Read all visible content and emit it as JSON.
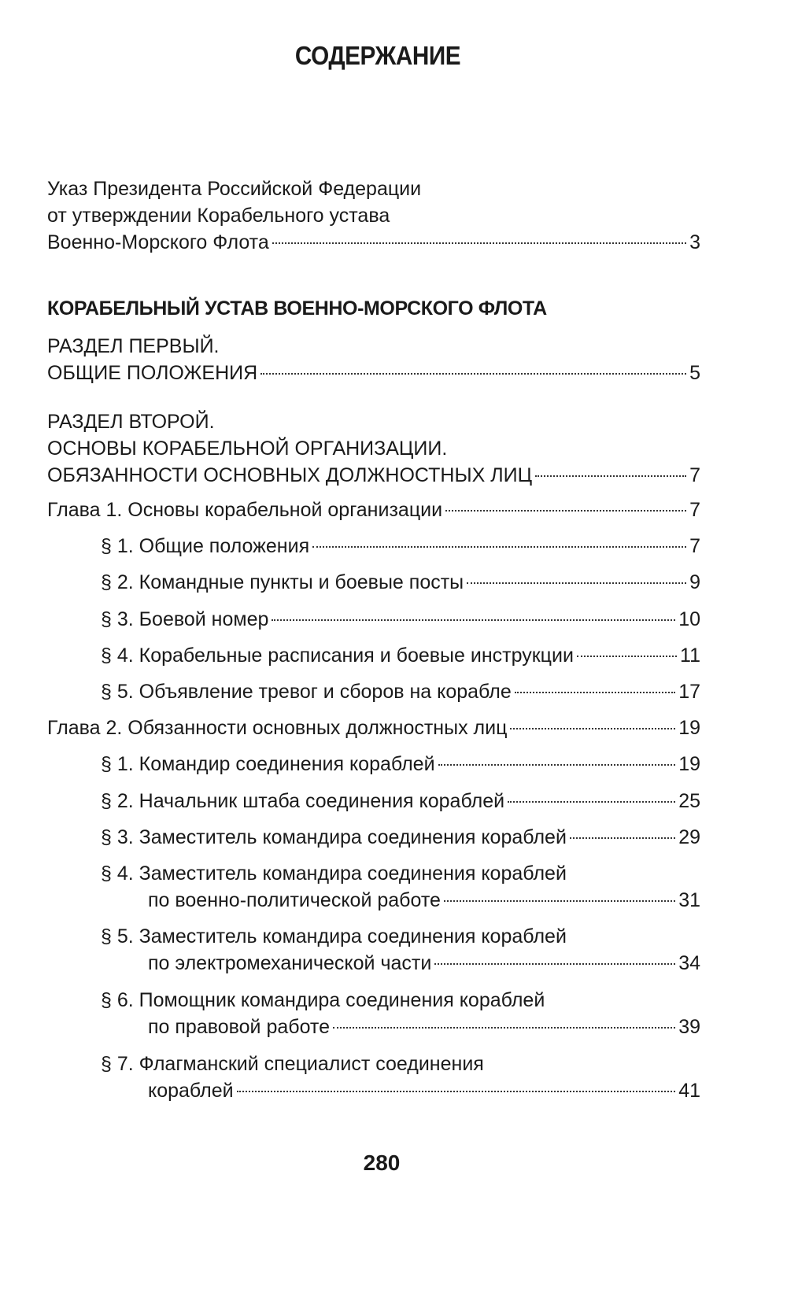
{
  "title": "СОДЕРЖАНИЕ",
  "entries": [
    {
      "lines": [
        "Указ Президента Российской Федерации",
        "от утверждении Корабельного устава",
        "Военно-Морского Флота"
      ],
      "page": "3",
      "level": 0
    },
    {
      "lines": [
        "КОРАБЕЛЬНЫЙ УСТАВ ВОЕННО-МОРСКОГО ФЛОТА"
      ],
      "page": "",
      "level": 0,
      "bold": true
    },
    {
      "lines": [
        "РАЗДЕЛ ПЕРВЫЙ.",
        "ОБЩИЕ ПОЛОЖЕНИЯ"
      ],
      "page": "5",
      "level": 0
    },
    {
      "lines": [
        "РАЗДЕЛ ВТОРОЙ.",
        "ОСНОВЫ КОРАБЕЛЬНОЙ ОРГАНИЗАЦИИ.",
        "ОБЯЗАННОСТИ ОСНОВНЫХ ДОЛЖНОСТНЫХ ЛИЦ"
      ],
      "page": "7",
      "level": 0
    },
    {
      "lines": [
        "Глава 1. Основы корабельной организации"
      ],
      "page": "7",
      "level": 0
    },
    {
      "lines": [
        "§ 1. Общие положения"
      ],
      "page": "7",
      "level": 1
    },
    {
      "lines": [
        "§ 2. Командные пункты и боевые посты"
      ],
      "page": "9",
      "level": 1
    },
    {
      "lines": [
        "§ 3. Боевой номер"
      ],
      "page": "10",
      "level": 1
    },
    {
      "lines": [
        "§ 4. Корабельные расписания и боевые инструкции"
      ],
      "page": "11",
      "level": 1
    },
    {
      "lines": [
        "§ 5. Объявление тревог и сборов на корабле"
      ],
      "page": "17",
      "level": 1
    },
    {
      "lines": [
        "Глава 2. Обязанности основных должностных лиц"
      ],
      "page": "19",
      "level": 0
    },
    {
      "lines": [
        "§ 1. Командир соединения кораблей"
      ],
      "page": "19",
      "level": 1
    },
    {
      "lines": [
        "§ 2. Начальник штаба соединения кораблей"
      ],
      "page": "25",
      "level": 1
    },
    {
      "lines": [
        "§ 3. Заместитель командира соединения кораблей"
      ],
      "page": "29",
      "level": 1
    },
    {
      "lines": [
        "§ 4. Заместитель командира соединения кораблей",
        "по военно-политической работе"
      ],
      "page": "31",
      "level": 1
    },
    {
      "lines": [
        "§ 5. Заместитель командира соединения кораблей",
        "по электромеханической части"
      ],
      "page": "34",
      "level": 1
    },
    {
      "lines": [
        "§ 6. Помощник командира соединения кораблей",
        "по правовой работе"
      ],
      "page": "39",
      "level": 1
    },
    {
      "lines": [
        "§ 7. Флагманский специалист соединения",
        "кораблей"
      ],
      "page": "41",
      "level": 1
    }
  ],
  "page_number": "280"
}
